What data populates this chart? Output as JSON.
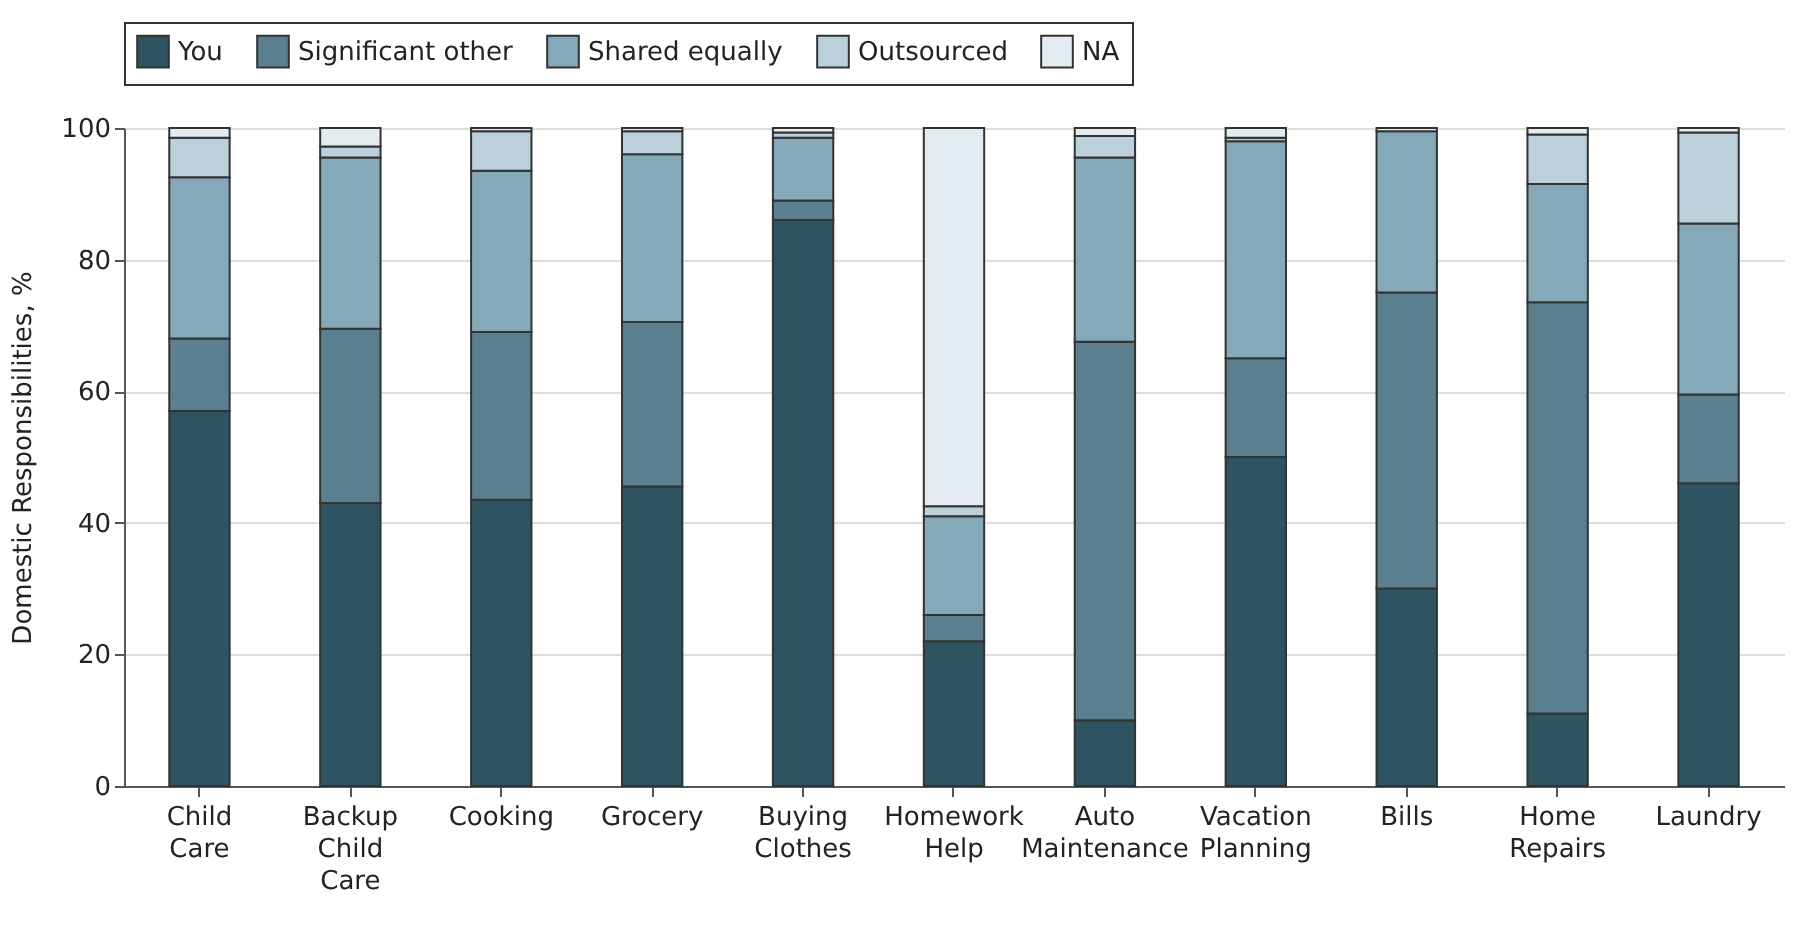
{
  "chart_data": {
    "type": "bar",
    "stacked": true,
    "ylabel": "Domestic Responsibilities, %",
    "categories": [
      "Child Care",
      "Backup Child Care",
      "Cooking",
      "Grocery",
      "Buying Clothes",
      "Homework Help",
      "Auto Maintenance",
      "Vacation Planning",
      "Bills",
      "Home Repairs",
      "Laundry"
    ],
    "series": [
      {
        "name": "You",
        "color": "#2e5462",
        "values": [
          57,
          43,
          43.5,
          45.5,
          86,
          22,
          10,
          50,
          30,
          11,
          46
        ]
      },
      {
        "name": "Significant other",
        "color": "#5b7f8e",
        "values": [
          11,
          26.5,
          25.5,
          25,
          3,
          4,
          57.5,
          15,
          45,
          62.5,
          13.5
        ]
      },
      {
        "name": "Shared equally",
        "color": "#85a9b8",
        "values": [
          24.5,
          26,
          24.5,
          25.5,
          9.5,
          15,
          28,
          33,
          24.5,
          18,
          26
        ]
      },
      {
        "name": "Outsourced",
        "color": "#bbd0da",
        "values": [
          6,
          1.7,
          6,
          3.5,
          0.8,
          1.5,
          3.3,
          0.5,
          null,
          7.5,
          13.8
        ]
      },
      {
        "name": "NA",
        "color": "#e3ecf0",
        "values": [
          1.5,
          2.8,
          0.5,
          0.5,
          0.7,
          57.5,
          1.2,
          1.5,
          0.5,
          1,
          0.7
        ]
      }
    ],
    "ylim": [
      0,
      100
    ],
    "yticks": [
      0,
      20,
      40,
      60,
      80,
      100
    ],
    "grid": "y",
    "legend": "top"
  }
}
